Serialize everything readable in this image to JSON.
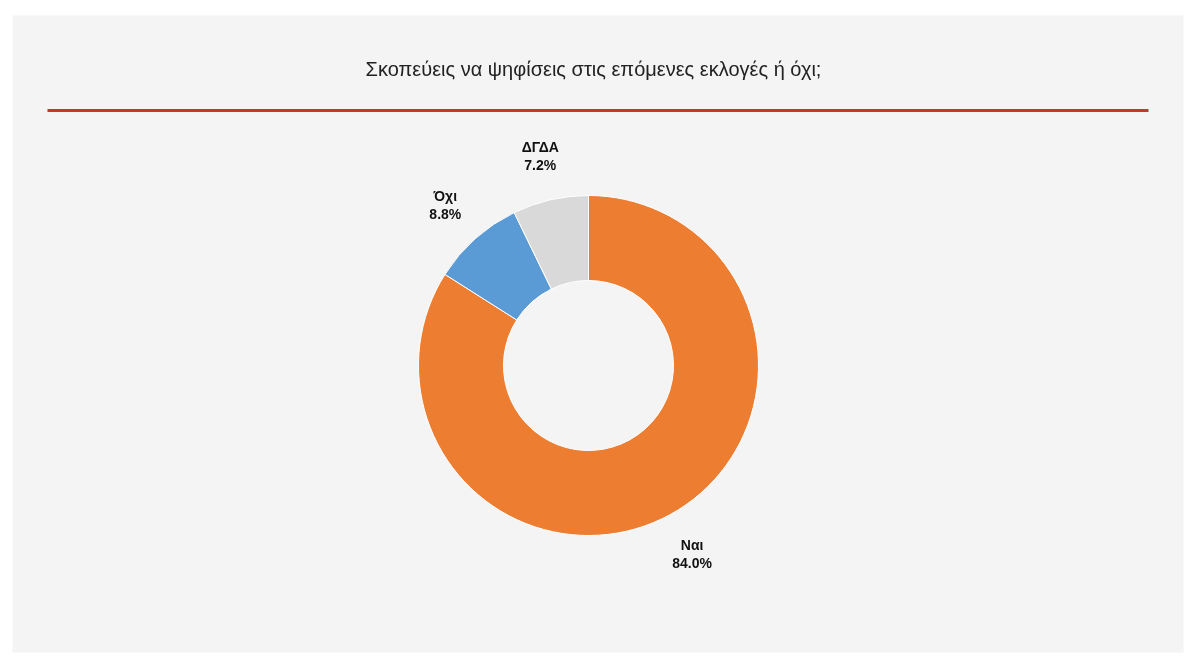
{
  "chart_data": {
    "type": "donut",
    "title": "Σκοπεύεις να ψηφίσεις στις επόμενες εκλογές ή όχι;",
    "categories": [
      "Ναι",
      "Όχι",
      "ΔΓΔΑ"
    ],
    "values": [
      84.0,
      8.8,
      7.2
    ],
    "colors": [
      "#ed7d31",
      "#5b9bd5",
      "#d9d9d9"
    ],
    "value_labels": [
      "84.0%",
      "8.8%",
      "7.2%"
    ]
  }
}
